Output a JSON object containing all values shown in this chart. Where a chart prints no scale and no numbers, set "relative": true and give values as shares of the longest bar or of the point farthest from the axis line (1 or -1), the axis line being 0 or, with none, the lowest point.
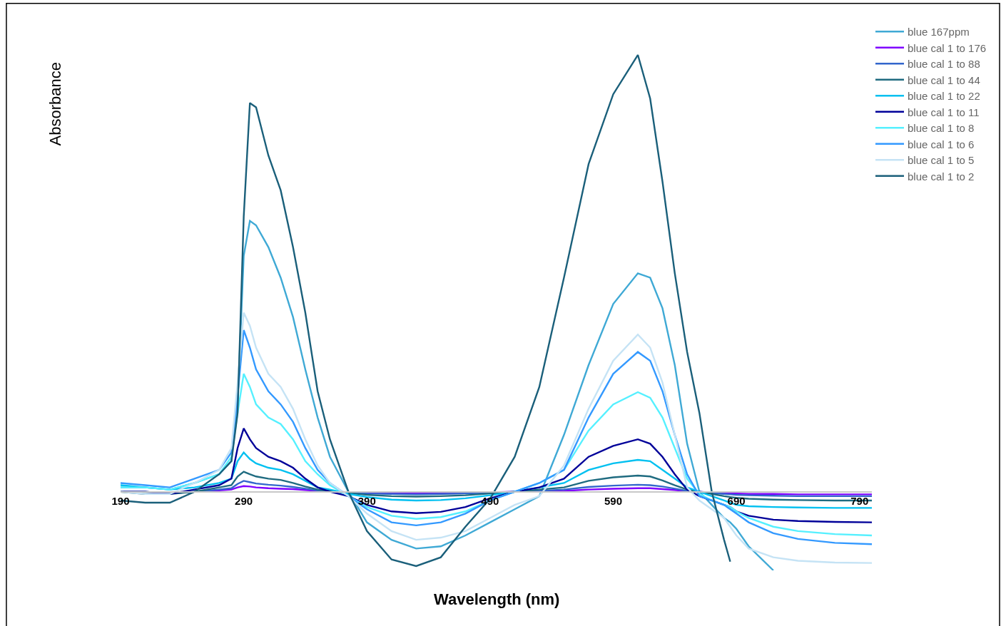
{
  "chart_data": {
    "type": "line",
    "relative": true,
    "xlabel": "Wavelength (nm)",
    "ylabel": "Absorbance",
    "x": [
      190,
      210,
      230,
      250,
      270,
      280,
      285,
      290,
      295,
      300,
      310,
      320,
      330,
      340,
      350,
      360,
      375,
      390,
      410,
      430,
      450,
      470,
      490,
      510,
      530,
      550,
      570,
      590,
      610,
      620,
      630,
      640,
      650,
      660,
      670,
      680,
      685,
      690,
      700,
      720,
      740,
      770,
      800
    ],
    "xlim": [
      190,
      800
    ],
    "xticks": [
      190,
      290,
      390,
      490,
      590,
      690,
      790
    ],
    "legend": "top right",
    "marker": "none",
    "line_style": "solid",
    "series": [
      {
        "name": "blue 167ppm",
        "color": "#3fa9d5",
        "values": [
          0.01,
          0.01,
          0.005,
          0.02,
          0.04,
          0.07,
          0.2,
          0.54,
          0.62,
          0.61,
          0.56,
          0.49,
          0.4,
          0.28,
          0.17,
          0.08,
          0.0,
          -0.07,
          -0.11,
          -0.13,
          -0.125,
          -0.1,
          -0.07,
          -0.04,
          -0.01,
          0.13,
          0.29,
          0.43,
          0.5,
          0.49,
          0.42,
          0.29,
          0.11,
          0.0,
          -0.03,
          -0.06,
          -0.07,
          -0.085,
          -0.125,
          -0.18,
          null,
          null,
          null
        ]
      },
      {
        "name": "blue cal 1 to 176",
        "color": "#7f00ff",
        "values": [
          null,
          null,
          null,
          0.0,
          0.003,
          0.005,
          0.01,
          0.013,
          0.012,
          0.01,
          0.008,
          0.007,
          0.006,
          0.004,
          0.002,
          0.001,
          -0.001,
          -0.002,
          -0.003,
          -0.003,
          -0.003,
          -0.002,
          -0.001,
          0.0,
          0.001,
          0.002,
          0.005,
          0.007,
          0.008,
          0.008,
          0.006,
          0.004,
          0.001,
          0.0,
          -0.002,
          -0.003,
          -0.004,
          -0.004,
          -0.005,
          -0.005,
          -0.006,
          -0.006,
          -0.006
        ]
      },
      {
        "name": "blue cal 1 to 88",
        "color": "#3366cc",
        "values": [
          0.0,
          0.0,
          -0.004,
          0.0,
          0.005,
          0.008,
          0.018,
          0.025,
          0.022,
          0.019,
          0.016,
          0.014,
          0.011,
          0.007,
          0.003,
          0.001,
          -0.002,
          -0.004,
          -0.005,
          -0.006,
          -0.005,
          -0.004,
          -0.002,
          0.0,
          0.002,
          0.005,
          0.011,
          0.014,
          0.016,
          0.015,
          0.012,
          0.007,
          0.002,
          0.0,
          -0.003,
          -0.005,
          -0.006,
          -0.007,
          -0.008,
          -0.009,
          -0.01,
          -0.01,
          -0.01
        ]
      },
      {
        "name": "blue cal 1 to 44",
        "color": "#1f6b80",
        "values": [
          0.0,
          -0.005,
          -0.005,
          0.0,
          0.01,
          0.015,
          0.035,
          0.046,
          0.04,
          0.035,
          0.03,
          0.027,
          0.02,
          0.012,
          0.005,
          0.002,
          -0.003,
          -0.007,
          -0.01,
          -0.011,
          -0.01,
          -0.008,
          -0.004,
          0.0,
          0.005,
          0.01,
          0.025,
          0.033,
          0.037,
          0.035,
          0.026,
          0.015,
          0.005,
          0.0,
          -0.005,
          -0.01,
          -0.012,
          -0.014,
          -0.016,
          -0.018,
          -0.019,
          -0.02,
          -0.02
        ]
      },
      {
        "name": "blue cal 1 to 22",
        "color": "#00c0f0",
        "values": [
          0.015,
          0.01,
          0.005,
          0.01,
          0.02,
          0.03,
          0.07,
          0.09,
          0.075,
          0.065,
          0.055,
          0.05,
          0.04,
          0.025,
          0.01,
          0.005,
          -0.005,
          -0.012,
          -0.018,
          -0.02,
          -0.019,
          -0.015,
          -0.008,
          0.0,
          0.01,
          0.02,
          0.05,
          0.065,
          0.073,
          0.07,
          0.05,
          0.03,
          0.01,
          0.0,
          -0.01,
          -0.02,
          -0.025,
          -0.03,
          -0.033,
          -0.035,
          -0.036,
          -0.037,
          -0.037
        ]
      },
      {
        "name": "blue cal 1 to 11",
        "color": "#000099",
        "values": [
          0.0,
          0.0,
          -0.005,
          0.005,
          0.015,
          0.03,
          0.1,
          0.145,
          0.12,
          0.1,
          0.08,
          0.07,
          0.055,
          0.03,
          0.01,
          0.0,
          -0.01,
          -0.03,
          -0.045,
          -0.049,
          -0.046,
          -0.035,
          -0.015,
          0.0,
          0.01,
          0.03,
          0.08,
          0.105,
          0.12,
          0.11,
          0.08,
          0.04,
          0.005,
          -0.01,
          -0.02,
          -0.03,
          -0.035,
          -0.045,
          -0.055,
          -0.064,
          -0.067,
          -0.069,
          -0.07
        ]
      },
      {
        "name": "blue cal 1 to 8",
        "color": "#55f0ff",
        "values": [
          0.01,
          0.01,
          0.005,
          0.02,
          0.04,
          0.08,
          0.18,
          0.27,
          0.24,
          0.2,
          0.17,
          0.155,
          0.12,
          0.07,
          0.04,
          0.015,
          -0.01,
          -0.035,
          -0.055,
          -0.062,
          -0.058,
          -0.045,
          -0.02,
          0.0,
          0.02,
          0.05,
          0.14,
          0.2,
          0.228,
          0.215,
          0.17,
          0.1,
          0.03,
          -0.005,
          -0.02,
          -0.03,
          -0.035,
          -0.045,
          -0.06,
          -0.08,
          -0.09,
          -0.097,
          -0.1
        ]
      },
      {
        "name": "blue cal 1 to 6",
        "color": "#3399ff",
        "values": [
          0.02,
          0.015,
          0.01,
          0.03,
          0.05,
          0.09,
          0.22,
          0.37,
          0.33,
          0.28,
          0.23,
          0.2,
          0.16,
          0.1,
          0.05,
          0.02,
          -0.01,
          -0.04,
          -0.07,
          -0.077,
          -0.07,
          -0.05,
          -0.02,
          0.0,
          0.02,
          0.05,
          0.17,
          0.27,
          0.32,
          0.3,
          0.23,
          0.13,
          0.04,
          -0.01,
          -0.02,
          -0.03,
          -0.04,
          -0.05,
          -0.07,
          -0.095,
          -0.108,
          -0.117,
          -0.12
        ]
      },
      {
        "name": "blue cal 1 to 5",
        "color": "#c5e3f5",
        "values": [
          0.0,
          -0.005,
          -0.005,
          0.02,
          0.05,
          0.1,
          0.25,
          0.41,
          0.38,
          0.33,
          0.27,
          0.24,
          0.19,
          0.12,
          0.06,
          0.02,
          -0.01,
          -0.05,
          -0.09,
          -0.11,
          -0.105,
          -0.09,
          -0.06,
          -0.03,
          -0.01,
          0.06,
          0.19,
          0.3,
          0.36,
          0.33,
          0.25,
          0.13,
          0.01,
          -0.02,
          -0.04,
          -0.06,
          -0.08,
          -0.1,
          -0.13,
          -0.15,
          -0.158,
          -0.162,
          -0.163
        ]
      },
      {
        "name": "blue cal 1 to 2",
        "color": "#1a5f7a",
        "values": [
          -0.02,
          -0.025,
          -0.025,
          0.0,
          0.04,
          0.07,
          0.18,
          0.63,
          0.89,
          0.88,
          0.77,
          0.69,
          0.56,
          0.41,
          0.23,
          0.12,
          0.0,
          -0.09,
          -0.155,
          -0.17,
          -0.15,
          -0.08,
          -0.016,
          0.08,
          0.24,
          0.49,
          0.75,
          0.91,
          1.0,
          0.9,
          0.71,
          0.5,
          0.32,
          0.18,
          0.0,
          -0.11,
          -0.16,
          null,
          null,
          null,
          null,
          null,
          null
        ]
      }
    ]
  }
}
